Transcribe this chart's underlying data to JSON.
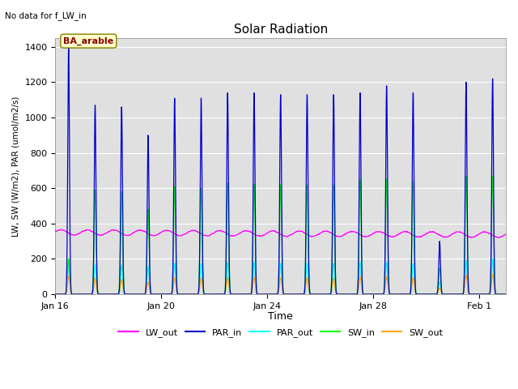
{
  "title": "Solar Radiation",
  "subtitle": "No data for f_LW_in",
  "xlabel": "Time",
  "ylabel": "LW, SW (W/m2), PAR (umol/m2/s)",
  "annotation": "BA_arable",
  "ylim": [
    0,
    1450
  ],
  "yticks": [
    0,
    200,
    400,
    600,
    800,
    1000,
    1200,
    1400
  ],
  "bg_color": "#e0e0e0",
  "colors": {
    "LW_out": "#ff00ff",
    "PAR_in": "#0000cc",
    "PAR_out": "#00ffff",
    "SW_in": "#00ff00",
    "SW_out": "#ffa500"
  },
  "n_days": 17,
  "lw_out_base": 350,
  "par_in_peaks": [
    1400,
    1070,
    1060,
    900,
    1110,
    1110,
    1140,
    1140,
    1130,
    1130,
    1130,
    1140,
    1180,
    1140,
    300,
    1200,
    1220
  ],
  "sw_in_peaks": [
    200,
    590,
    580,
    480,
    610,
    600,
    630,
    625,
    620,
    620,
    620,
    650,
    650,
    640,
    150,
    670,
    670
  ],
  "par_out_peaks": [
    180,
    170,
    165,
    155,
    175,
    175,
    180,
    180,
    175,
    178,
    175,
    180,
    180,
    175,
    70,
    190,
    200
  ],
  "sw_out_peaks": [
    100,
    90,
    85,
    68,
    92,
    90,
    94,
    94,
    93,
    93,
    90,
    98,
    98,
    93,
    35,
    108,
    112
  ],
  "tick_positions": [
    0,
    4,
    8,
    12,
    16
  ],
  "tick_labels": [
    "Jan 16",
    "Jan 20",
    "Jan 24",
    "Jan 28",
    "Feb 1"
  ],
  "legend_labels": [
    "LW_out",
    "PAR_in",
    "PAR_out",
    "SW_in",
    "SW_out"
  ]
}
